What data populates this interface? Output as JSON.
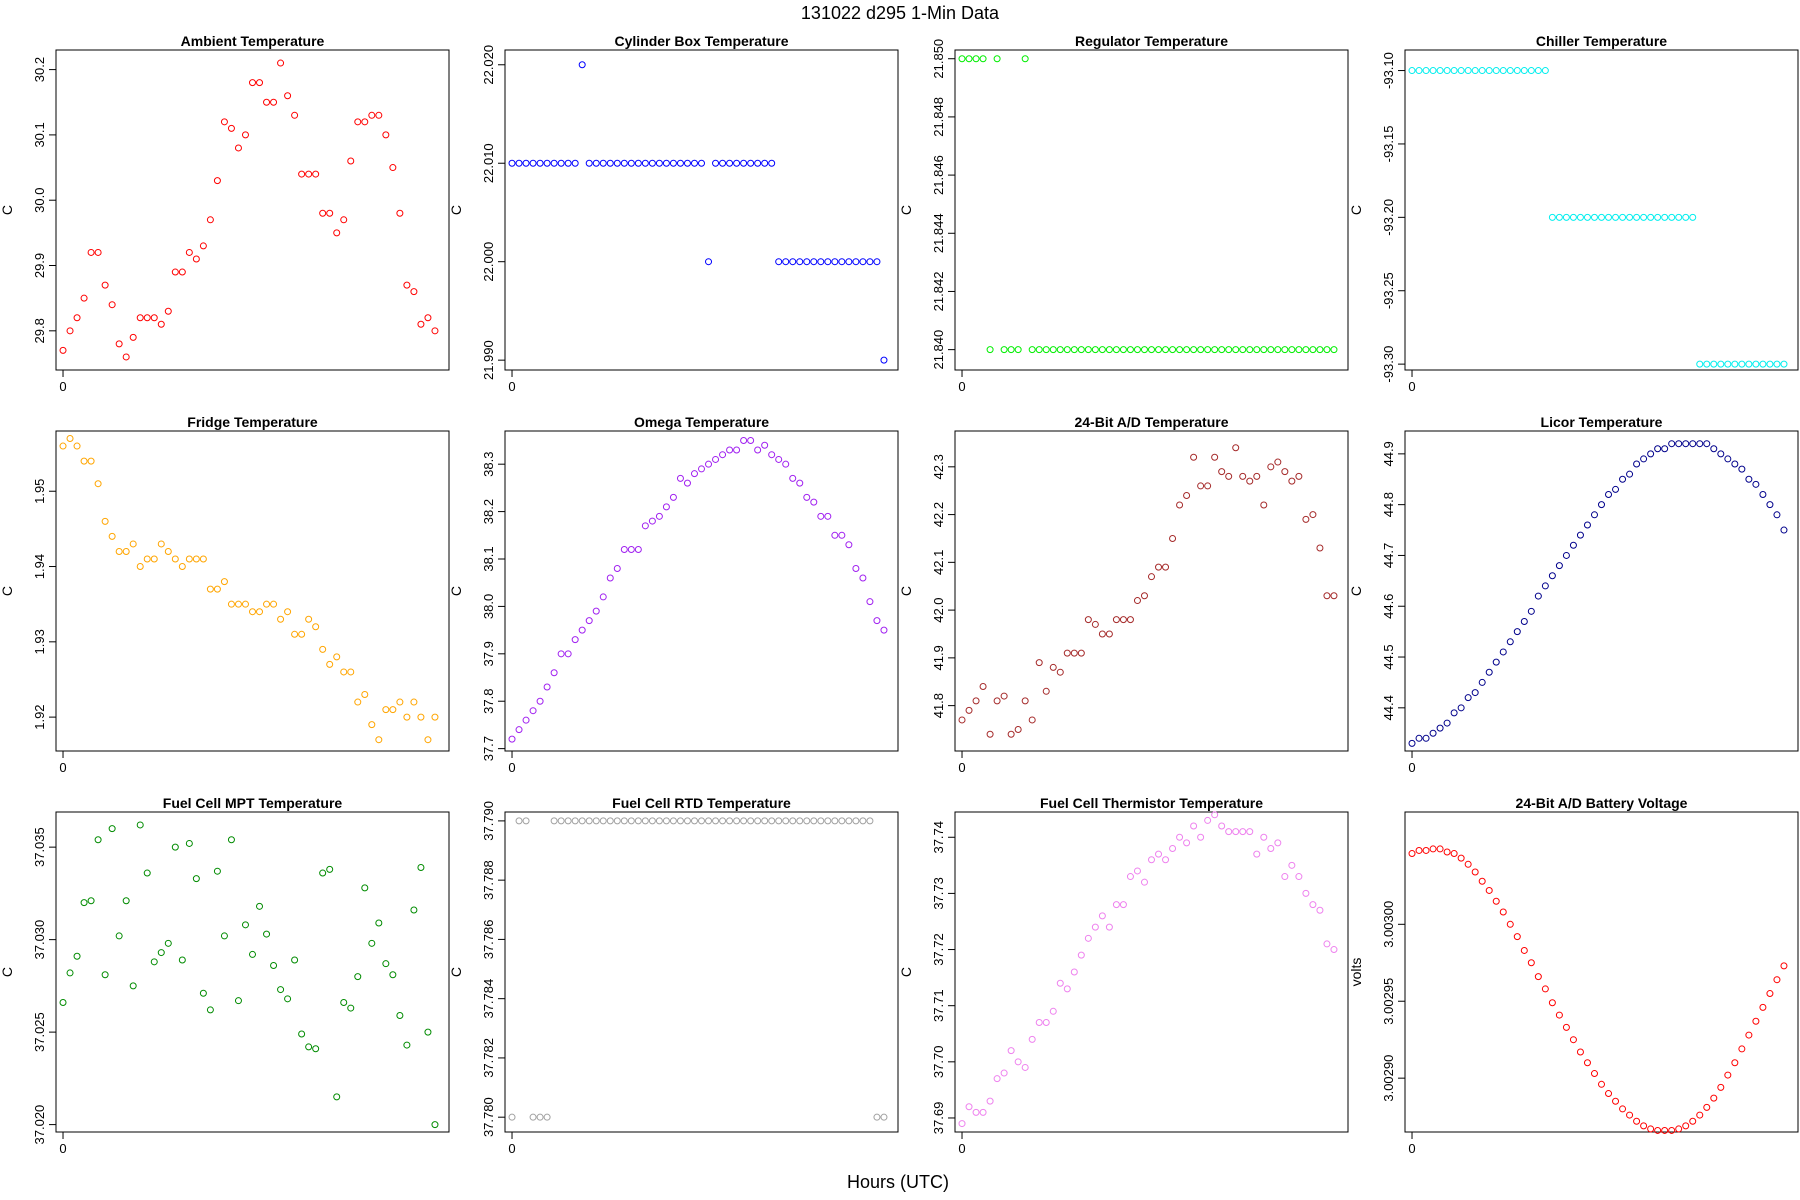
{
  "figure": {
    "title": "131022   d295   1-Min Data",
    "xlabel": "Hours (UTC)"
  },
  "chart_data": [
    {
      "type": "scatter",
      "title": "Ambient Temperature",
      "ylabel": "C",
      "color": "#ff0000",
      "xlim": [
        -1,
        55
      ],
      "ylim": [
        29.74,
        30.23
      ],
      "xticks": [
        0
      ],
      "yticks": [
        "29.8",
        "29.9",
        "30.0",
        "30.1",
        "30.2"
      ],
      "values": [
        29.77,
        29.8,
        29.82,
        29.85,
        29.92,
        29.92,
        29.87,
        29.84,
        29.78,
        29.76,
        29.79,
        29.82,
        29.82,
        29.82,
        29.81,
        29.83,
        29.89,
        29.89,
        29.92,
        29.91,
        29.93,
        29.97,
        30.03,
        30.12,
        30.11,
        30.08,
        30.1,
        30.18,
        30.18,
        30.15,
        30.15,
        30.21,
        30.16,
        30.13,
        30.04,
        30.04,
        30.04,
        29.98,
        29.98,
        29.95,
        29.97,
        30.06,
        30.12,
        30.12,
        30.13,
        30.13,
        30.1,
        30.05,
        29.98,
        29.87,
        29.86,
        29.81,
        29.82,
        29.8
      ]
    },
    {
      "type": "scatter",
      "title": "Cylinder Box Temperature",
      "ylabel": "C",
      "color": "#0000ff",
      "xlim": [
        -1,
        55
      ],
      "ylim": [
        21.989,
        22.0215
      ],
      "xticks": [
        0
      ],
      "yticks": [
        "21.990",
        "22.000",
        "22.010",
        "22.020"
      ],
      "values": [
        22.01,
        22.01,
        22.01,
        22.01,
        22.01,
        22.01,
        22.01,
        22.01,
        22.01,
        22.01,
        22.02,
        22.01,
        22.01,
        22.01,
        22.01,
        22.01,
        22.01,
        22.01,
        22.01,
        22.01,
        22.01,
        22.01,
        22.01,
        22.01,
        22.01,
        22.01,
        22.01,
        22.01,
        22.0,
        22.01,
        22.01,
        22.01,
        22.01,
        22.01,
        22.01,
        22.01,
        22.01,
        22.01,
        22.0,
        22.0,
        22.0,
        22.0,
        22.0,
        22.0,
        22.0,
        22.0,
        22.0,
        22.0,
        22.0,
        22.0,
        22.0,
        22.0,
        22.0,
        21.99
      ]
    },
    {
      "type": "scatter",
      "title": "Regulator Temperature",
      "ylabel": "C",
      "color": "#00ee00",
      "xlim": [
        -1,
        55
      ],
      "ylim": [
        21.8393,
        21.8503
      ],
      "xticks": [
        0
      ],
      "yticks": [
        "21.840",
        "21.842",
        "21.844",
        "21.846",
        "21.848",
        "21.850"
      ],
      "values": [
        21.85,
        21.85,
        21.85,
        21.85,
        21.84,
        21.85,
        21.84,
        21.84,
        21.84,
        21.85,
        21.84,
        21.84,
        21.84,
        21.84,
        21.84,
        21.84,
        21.84,
        21.84,
        21.84,
        21.84,
        21.84,
        21.84,
        21.84,
        21.84,
        21.84,
        21.84,
        21.84,
        21.84,
        21.84,
        21.84,
        21.84,
        21.84,
        21.84,
        21.84,
        21.84,
        21.84,
        21.84,
        21.84,
        21.84,
        21.84,
        21.84,
        21.84,
        21.84,
        21.84,
        21.84,
        21.84,
        21.84,
        21.84,
        21.84,
        21.84,
        21.84,
        21.84,
        21.84,
        21.84
      ]
    },
    {
      "type": "scatter",
      "title": "Chiller Temperature",
      "ylabel": "C",
      "color": "#00eeee",
      "xlim": [
        -1,
        55
      ],
      "ylim": [
        -93.304,
        -93.086
      ],
      "xticks": [
        0
      ],
      "yticks": [
        "-93.30",
        "-93.25",
        "-93.20",
        "-93.15",
        "-93.10"
      ],
      "values": [
        -93.1,
        -93.1,
        -93.1,
        -93.1,
        -93.1,
        -93.1,
        -93.1,
        -93.1,
        -93.1,
        -93.1,
        -93.1,
        -93.1,
        -93.1,
        -93.1,
        -93.1,
        -93.1,
        -93.1,
        -93.1,
        -93.1,
        -93.1,
        -93.2,
        -93.2,
        -93.2,
        -93.2,
        -93.2,
        -93.2,
        -93.2,
        -93.2,
        -93.2,
        -93.2,
        -93.2,
        -93.2,
        -93.2,
        -93.2,
        -93.2,
        -93.2,
        -93.2,
        -93.2,
        -93.2,
        -93.2,
        -93.2,
        -93.3,
        -93.3,
        -93.3,
        -93.3,
        -93.3,
        -93.3,
        -93.3,
        -93.3,
        -93.3,
        -93.3,
        -93.3,
        -93.3,
        -93.3
      ]
    },
    {
      "type": "scatter",
      "title": "Fridge Temperature",
      "ylabel": "C",
      "color": "#ffa500",
      "xlim": [
        -1,
        55
      ],
      "ylim": [
        1.9155,
        1.958
      ],
      "xticks": [
        0
      ],
      "yticks": [
        "1.92",
        "1.93",
        "1.94",
        "1.95"
      ],
      "values": [
        1.956,
        1.957,
        1.956,
        1.954,
        1.954,
        1.951,
        1.946,
        1.944,
        1.942,
        1.942,
        1.943,
        1.94,
        1.941,
        1.941,
        1.943,
        1.942,
        1.941,
        1.94,
        1.941,
        1.941,
        1.941,
        1.937,
        1.937,
        1.938,
        1.935,
        1.935,
        1.935,
        1.934,
        1.934,
        1.935,
        1.935,
        1.933,
        1.934,
        1.931,
        1.931,
        1.933,
        1.932,
        1.929,
        1.927,
        1.928,
        1.926,
        1.926,
        1.922,
        1.923,
        1.919,
        1.917,
        1.921,
        1.921,
        1.922,
        1.92,
        1.922,
        1.92,
        1.917,
        1.92
      ]
    },
    {
      "type": "scatter",
      "title": "Omega Temperature",
      "ylabel": "C",
      "color": "#a020f0",
      "xlim": [
        -1,
        55
      ],
      "ylim": [
        37.695,
        38.37
      ],
      "xticks": [
        0
      ],
      "yticks": [
        "37.7",
        "37.8",
        "37.9",
        "38.0",
        "38.1",
        "38.2",
        "38.3"
      ],
      "values": [
        37.72,
        37.74,
        37.76,
        37.78,
        37.8,
        37.83,
        37.86,
        37.9,
        37.9,
        37.93,
        37.95,
        37.97,
        37.99,
        38.02,
        38.06,
        38.08,
        38.12,
        38.12,
        38.12,
        38.17,
        38.18,
        38.19,
        38.21,
        38.23,
        38.27,
        38.26,
        38.28,
        38.29,
        38.3,
        38.31,
        38.32,
        38.33,
        38.33,
        38.35,
        38.35,
        38.33,
        38.34,
        38.32,
        38.31,
        38.3,
        38.27,
        38.26,
        38.23,
        38.22,
        38.19,
        38.19,
        38.15,
        38.15,
        38.13,
        38.08,
        38.06,
        38.01,
        37.97,
        37.95
      ]
    },
    {
      "type": "scatter",
      "title": "24-Bit A/D Temperature",
      "ylabel": "C",
      "color": "#a52a2a",
      "xlim": [
        -1,
        55
      ],
      "ylim": [
        41.705,
        42.375
      ],
      "xticks": [
        0
      ],
      "yticks": [
        "41.8",
        "41.9",
        "42.0",
        "42.1",
        "42.2",
        "42.3"
      ],
      "values": [
        41.77,
        41.79,
        41.81,
        41.84,
        41.74,
        41.81,
        41.82,
        41.74,
        41.75,
        41.81,
        41.77,
        41.89,
        41.83,
        41.88,
        41.87,
        41.91,
        41.91,
        41.91,
        41.98,
        41.97,
        41.95,
        41.95,
        41.98,
        41.98,
        41.98,
        42.02,
        42.03,
        42.07,
        42.09,
        42.09,
        42.15,
        42.22,
        42.24,
        42.32,
        42.26,
        42.26,
        42.32,
        42.29,
        42.28,
        42.34,
        42.28,
        42.27,
        42.28,
        42.22,
        42.3,
        42.31,
        42.29,
        42.27,
        42.28,
        42.19,
        42.2,
        42.13,
        42.03,
        42.03
      ]
    },
    {
      "type": "scatter",
      "title": "Licor Temperature",
      "ylabel": "C",
      "color": "#00008b",
      "xlim": [
        -1,
        55
      ],
      "ylim": [
        44.315,
        44.945
      ],
      "xticks": [
        0
      ],
      "yticks": [
        "44.4",
        "44.5",
        "44.6",
        "44.7",
        "44.8",
        "44.9"
      ],
      "values": [
        44.33,
        44.34,
        44.34,
        44.35,
        44.36,
        44.37,
        44.39,
        44.4,
        44.42,
        44.43,
        44.45,
        44.47,
        44.49,
        44.51,
        44.53,
        44.55,
        44.57,
        44.59,
        44.62,
        44.64,
        44.66,
        44.68,
        44.7,
        44.72,
        44.74,
        44.76,
        44.78,
        44.8,
        44.82,
        44.83,
        44.85,
        44.86,
        44.88,
        44.89,
        44.9,
        44.91,
        44.91,
        44.92,
        44.92,
        44.92,
        44.92,
        44.92,
        44.92,
        44.91,
        44.9,
        44.89,
        44.88,
        44.87,
        44.85,
        44.84,
        44.82,
        44.8,
        44.78,
        44.75
      ]
    },
    {
      "type": "scatter",
      "title": "Fuel Cell MPT Temperature",
      "ylabel": "C",
      "color": "#008b00",
      "xlim": [
        -1,
        55
      ],
      "ylim": [
        37.0196,
        37.0369
      ],
      "xticks": [
        0
      ],
      "yticks": [
        "37.020",
        "37.025",
        "37.030",
        "37.035"
      ],
      "values": [
        37.0266,
        37.0282,
        37.0291,
        37.032,
        37.0321,
        37.0354,
        37.0281,
        37.036,
        37.0302,
        37.0321,
        37.0275,
        37.0362,
        37.0336,
        37.0288,
        37.0293,
        37.0298,
        37.035,
        37.0289,
        37.0352,
        37.0333,
        37.0271,
        37.0262,
        37.0337,
        37.0302,
        37.0354,
        37.0267,
        37.0308,
        37.0292,
        37.0318,
        37.0303,
        37.0286,
        37.0273,
        37.0268,
        37.0289,
        37.0249,
        37.0242,
        37.0241,
        37.0336,
        37.0338,
        37.0215,
        37.0266,
        37.0263,
        37.028,
        37.0328,
        37.0298,
        37.0309,
        37.0287,
        37.0281,
        37.0259,
        37.0243,
        37.0316,
        37.0339,
        37.025,
        37.02
      ]
    },
    {
      "type": "scatter",
      "title": "Fuel Cell RTD Temperature",
      "ylabel": "C",
      "color": "#a0a0a0",
      "xlim": [
        -1,
        55
      ],
      "ylim": [
        37.7795,
        37.7903
      ],
      "xticks": [
        0
      ],
      "yticks": [
        "37.780",
        "37.782",
        "37.784",
        "37.786",
        "37.788",
        "37.790"
      ],
      "values": [
        37.78,
        37.79,
        37.79,
        37.78,
        37.78,
        37.78,
        37.79,
        37.79,
        37.79,
        37.79,
        37.79,
        37.79,
        37.79,
        37.79,
        37.79,
        37.79,
        37.79,
        37.79,
        37.79,
        37.79,
        37.79,
        37.79,
        37.79,
        37.79,
        37.79,
        37.79,
        37.79,
        37.79,
        37.79,
        37.79,
        37.79,
        37.79,
        37.79,
        37.79,
        37.79,
        37.79,
        37.79,
        37.79,
        37.79,
        37.79,
        37.79,
        37.79,
        37.79,
        37.79,
        37.79,
        37.79,
        37.79,
        37.79,
        37.79,
        37.79,
        37.79,
        37.79,
        37.78,
        37.78
      ]
    },
    {
      "type": "scatter",
      "title": "Fuel Cell Thermistor Temperature",
      "ylabel": "C",
      "color": "#ee82ee",
      "xlim": [
        -1,
        55
      ],
      "ylim": [
        37.6875,
        37.7445
      ],
      "xticks": [
        0
      ],
      "yticks": [
        "37.69",
        "37.70",
        "37.71",
        "37.72",
        "37.73",
        "37.74"
      ],
      "values": [
        37.689,
        37.692,
        37.691,
        37.691,
        37.693,
        37.697,
        37.698,
        37.702,
        37.7,
        37.699,
        37.704,
        37.707,
        37.707,
        37.709,
        37.714,
        37.713,
        37.716,
        37.719,
        37.722,
        37.724,
        37.726,
        37.724,
        37.728,
        37.728,
        37.733,
        37.734,
        37.732,
        37.736,
        37.737,
        37.736,
        37.738,
        37.74,
        37.739,
        37.742,
        37.74,
        37.743,
        37.744,
        37.742,
        37.741,
        37.741,
        37.741,
        37.741,
        37.737,
        37.74,
        37.738,
        37.739,
        37.733,
        37.735,
        37.733,
        37.73,
        37.728,
        37.727,
        37.721,
        37.72
      ]
    },
    {
      "type": "scatter",
      "title": "24-Bit A/D Battery Voltage",
      "ylabel": "volts",
      "color": "#ff0000",
      "xlim": [
        -1,
        55
      ],
      "ylim": [
        3.002865,
        3.003073
      ],
      "xticks": [
        0
      ],
      "yticks": [
        "3.00290",
        "3.00295",
        "3.00300"
      ],
      "values": [
        3.003046,
        3.003048,
        3.003048,
        3.003049,
        3.003049,
        3.003047,
        3.003046,
        3.003043,
        3.003039,
        3.003034,
        3.003028,
        3.003022,
        3.003015,
        3.003008,
        3.003,
        3.002992,
        3.002983,
        3.002975,
        3.002966,
        3.002958,
        3.002949,
        3.002941,
        3.002933,
        3.002925,
        3.002917,
        3.00291,
        3.002903,
        3.002896,
        3.00289,
        3.002885,
        3.00288,
        3.002876,
        3.002872,
        3.002869,
        3.002867,
        3.002866,
        3.002866,
        3.002866,
        3.002867,
        3.002869,
        3.002872,
        3.002876,
        3.002881,
        3.002887,
        3.002894,
        3.002902,
        3.00291,
        3.002919,
        3.002928,
        3.002937,
        3.002946,
        3.002955,
        3.002964,
        3.002973
      ]
    }
  ]
}
